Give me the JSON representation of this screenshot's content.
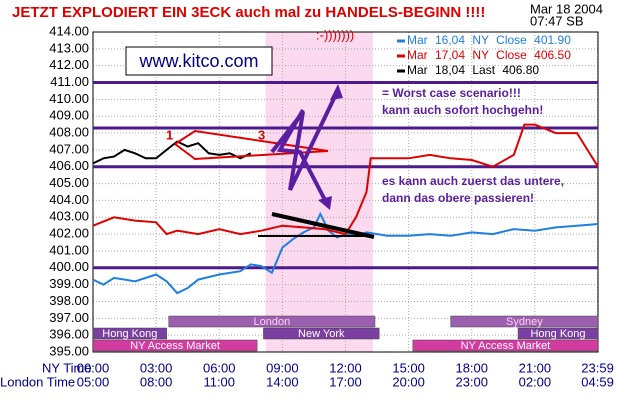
{
  "chart_data": {
    "type": "line",
    "title": "JETZT EXPLODIERT EIN 3ECK auch mal zu HANDELS-BEGINN !!!!",
    "date": "Mar 18 2004",
    "time": "07:47 SB",
    "source": "www.kitco.com",
    "annotations": [
      ":-)))))))",
      "= Worst case scenario!!!",
      "kann auch sofort hochgehn!",
      "es kann auch zuerst das untere,",
      "dann das obere passieren!",
      "1",
      "3"
    ],
    "ylim": [
      395,
      414
    ],
    "yticks": [
      {
        "value": 395,
        "label": "395.00"
      },
      {
        "value": 396,
        "label": "396.00"
      },
      {
        "value": 397,
        "label": "397.00"
      },
      {
        "value": 398,
        "label": "398.00"
      },
      {
        "value": 399,
        "label": "399.00"
      },
      {
        "value": 400,
        "label": "400.00"
      },
      {
        "value": 401,
        "label": "401.00"
      },
      {
        "value": 402,
        "label": "402.00"
      },
      {
        "value": 403,
        "label": "403.00"
      },
      {
        "value": 404,
        "label": "404.00"
      },
      {
        "value": 405,
        "label": "405.00"
      },
      {
        "value": 406,
        "label": "406.00"
      },
      {
        "value": 407,
        "label": "407.00"
      },
      {
        "value": 408,
        "label": "408.00"
      },
      {
        "value": 409,
        "label": "409.00"
      },
      {
        "value": 410,
        "label": "410.00"
      },
      {
        "value": 411,
        "label": "411.00"
      },
      {
        "value": 412,
        "label": "412.00"
      },
      {
        "value": 413,
        "label": "413.00"
      },
      {
        "value": 414,
        "label": "414.00"
      }
    ],
    "xlim": [
      0,
      24
    ],
    "x_axes": [
      {
        "title": "NY Time",
        "ticks": [
          {
            "value": 0,
            "label": "00:00"
          },
          {
            "value": 3,
            "label": "03:00"
          },
          {
            "value": 6,
            "label": "06:00"
          },
          {
            "value": 9,
            "label": "09:00"
          },
          {
            "value": 12,
            "label": "12:00"
          },
          {
            "value": 15,
            "label": "15:00"
          },
          {
            "value": 18,
            "label": "18:00"
          },
          {
            "value": 21,
            "label": "21:00"
          },
          {
            "value": 23.98,
            "label": "23:59"
          }
        ]
      },
      {
        "title": "London Time",
        "ticks": [
          {
            "value": 0,
            "label": "05:00"
          },
          {
            "value": 3,
            "label": "08:00"
          },
          {
            "value": 6,
            "label": "11:00"
          },
          {
            "value": 9,
            "label": "14:00"
          },
          {
            "value": 12,
            "label": "17:00"
          },
          {
            "value": 15,
            "label": "20:00"
          },
          {
            "value": 18,
            "label": "23:00"
          },
          {
            "value": 21,
            "label": "02:00"
          },
          {
            "value": 23.98,
            "label": "04:59"
          }
        ]
      }
    ],
    "grid": true,
    "series": [
      {
        "name": "Mar 16,04 NY Close 401.90",
        "color": "#1e7fe0",
        "x": [
          0,
          0.5,
          1,
          2,
          3,
          3.5,
          4,
          4.5,
          5,
          6,
          7,
          7.5,
          8,
          8.5,
          9,
          9.5,
          10,
          10.5,
          10.8,
          11.2,
          11.6,
          12,
          12.5,
          13,
          14,
          15,
          16,
          17,
          18,
          19,
          20,
          21,
          22,
          23,
          24
        ],
        "values": [
          399.3,
          399,
          399.4,
          399.2,
          399.6,
          399.2,
          398.5,
          398.8,
          399.3,
          399.6,
          399.8,
          400.2,
          400.1,
          399.7,
          401.2,
          401.7,
          402.1,
          402.4,
          403.2,
          402.2,
          401.8,
          402,
          401.9,
          402.1,
          401.9,
          401.9,
          402,
          401.9,
          402.1,
          402,
          402.3,
          402.2,
          402.4,
          402.5,
          402.6
        ]
      },
      {
        "name": "Mar 17,04 NY Close 406.50",
        "color": "#e00000",
        "x": [
          0,
          1,
          2,
          3,
          3.5,
          4,
          5,
          6,
          7,
          8,
          9,
          10,
          11,
          12,
          12.5,
          13,
          13.2,
          14,
          15,
          16,
          17,
          18,
          19,
          20,
          20.5,
          21,
          22,
          23,
          23.5,
          24
        ],
        "values": [
          402.5,
          403,
          402.8,
          402.7,
          402,
          402.2,
          402,
          402.3,
          402,
          402.2,
          402.5,
          402.4,
          402.3,
          402,
          403,
          404.5,
          406.5,
          406.5,
          406.5,
          406.7,
          406.5,
          406.4,
          406,
          406.7,
          408.5,
          408.5,
          408,
          408,
          407,
          406
        ]
      },
      {
        "name": "Mar 18,04 Last 406.80",
        "color": "#000000",
        "x": [
          0,
          0.5,
          1,
          1.5,
          2,
          2.5,
          3,
          3.5,
          4,
          4.5,
          5,
          5.5,
          6,
          6.5,
          7,
          7.5
        ],
        "values": [
          406.2,
          406.5,
          406.6,
          407,
          406.8,
          406.5,
          406.5,
          407,
          407.5,
          407.2,
          407.4,
          406.8,
          406.7,
          406.8,
          406.5,
          406.8
        ]
      }
    ],
    "level_lines": [
      411,
      408.3,
      406,
      400
    ],
    "shaded_span": [
      8.2,
      13.3
    ],
    "sessions": [
      {
        "label": "London",
        "start": 3.6,
        "end": 13.4
      },
      {
        "label": "Sydney",
        "start": 17,
        "end": 24
      },
      {
        "label": "Hong Kong",
        "start": 0,
        "end": 3.5
      },
      {
        "label": "New York",
        "start": 8.1,
        "end": 13.6
      },
      {
        "label": "Hong Kong",
        "start": 20.2,
        "end": 24
      },
      {
        "label": "NY Access Market",
        "start": 0,
        "end": 7.8
      },
      {
        "label": "NY Access Market",
        "start": 15.2,
        "end": 24
      }
    ]
  }
}
